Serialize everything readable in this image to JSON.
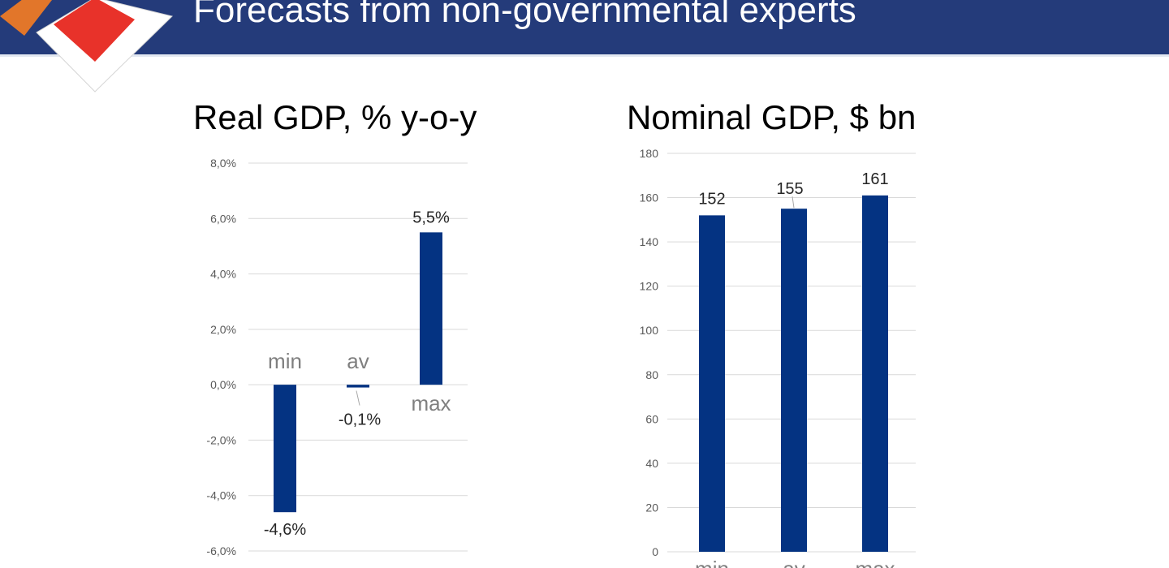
{
  "header": {
    "title": "Forecasts from non-governmental experts"
  },
  "colors": {
    "header_bg": "#243b7a",
    "bar": "#043382",
    "logo_orange": "#e2762a",
    "logo_red": "#e8322a"
  },
  "chart_data": [
    {
      "type": "bar",
      "title": "Real GDP, % y-o-y",
      "categories": [
        "min",
        "av",
        "max"
      ],
      "values": [
        -4.6,
        -0.1,
        5.5
      ],
      "data_labels": [
        "-4,6%",
        "-0,1%",
        "5,5%"
      ],
      "ylim": [
        -6,
        8
      ],
      "ytick_values": [
        8,
        6,
        4,
        2,
        0,
        -2,
        -4,
        -6
      ],
      "ytick_labels": [
        "8,0%",
        "6,0%",
        "4,0%",
        "2,0%",
        "0,0%",
        "-2,0%",
        "-4,0%",
        "-6,0%"
      ],
      "grid": true,
      "xlabel": "",
      "ylabel": ""
    },
    {
      "type": "bar",
      "title": "Nominal GDP, $ bn",
      "categories": [
        "min",
        "av",
        "max"
      ],
      "values": [
        152,
        155,
        161
      ],
      "data_labels": [
        "152",
        "155",
        "161"
      ],
      "ylim": [
        0,
        180
      ],
      "ytick_values": [
        180,
        160,
        140,
        120,
        100,
        80,
        60,
        40,
        20,
        0
      ],
      "ytick_labels": [
        "180",
        "160",
        "140",
        "120",
        "100",
        "80",
        "60",
        "40",
        "20",
        "0"
      ],
      "grid": true,
      "xlabel": "",
      "ylabel": ""
    }
  ]
}
